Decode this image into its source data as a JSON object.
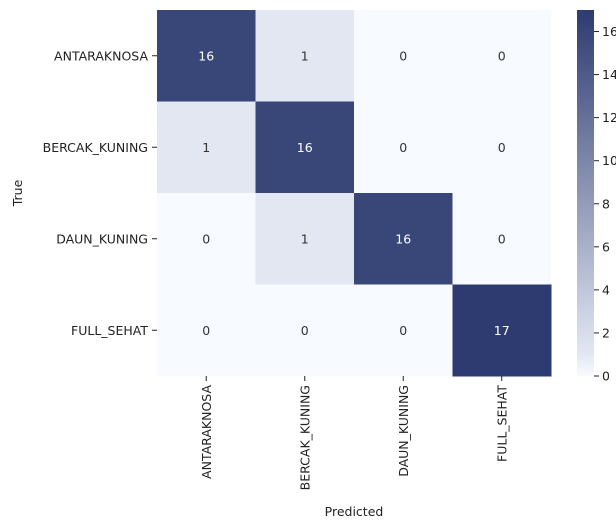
{
  "chart_data": {
    "type": "heatmap",
    "title": "",
    "xlabel": "Predicted",
    "ylabel": "True",
    "x_categories": [
      "ANTARAKNOSA",
      "BERCAK_KUNING",
      "DAUN_KUNING",
      "FULL_SEHAT"
    ],
    "y_categories": [
      "ANTARAKNOSA",
      "BERCAK_KUNING",
      "DAUN_KUNING",
      "FULL_SEHAT"
    ],
    "values": [
      [
        16,
        1,
        0,
        0
      ],
      [
        1,
        16,
        0,
        0
      ],
      [
        0,
        1,
        16,
        0
      ],
      [
        0,
        0,
        0,
        17
      ]
    ],
    "color_range": [
      0,
      17
    ],
    "colormap": {
      "low": "#f7fbff",
      "mid": "#e2e7f2",
      "high": "#2d3b70"
    },
    "colorbar": {
      "ticks": [
        0,
        2,
        4,
        6,
        8,
        10,
        12,
        14,
        16
      ],
      "tick_labels": [
        "0",
        "2",
        "4",
        "6",
        "8",
        "10",
        "12",
        "14",
        "16"
      ]
    },
    "text_colors": {
      "dark": "#333333",
      "light": "#ffffff"
    },
    "grid": false
  }
}
